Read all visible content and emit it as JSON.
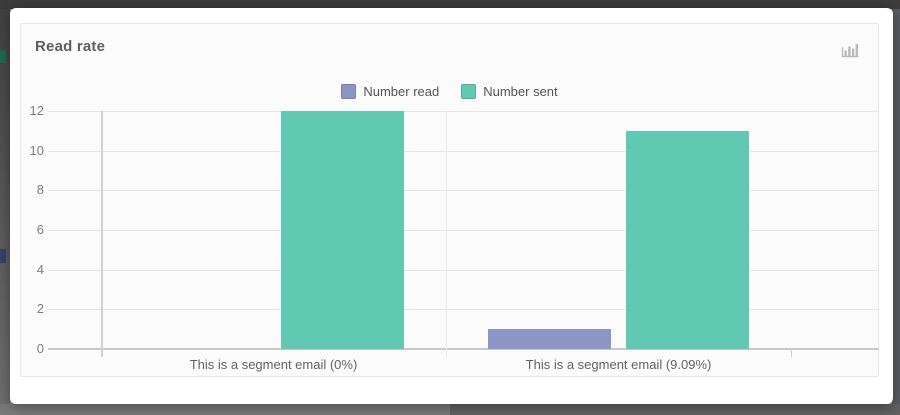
{
  "window": {
    "kind": "modal-dialog"
  },
  "card": {
    "title": "Read rate",
    "header_icon": "bar-chart-icon"
  },
  "chart_data": {
    "type": "bar",
    "title": "Read rate",
    "categories": [
      "This is a segment email (0%)",
      "This is a segment email (9.09%)"
    ],
    "series": [
      {
        "name": "Number read",
        "color": "#8b96c6",
        "values": [
          0,
          1
        ]
      },
      {
        "name": "Number sent",
        "color": "#61c8b2",
        "values": [
          12,
          11
        ]
      }
    ],
    "ylim": [
      0,
      12
    ],
    "ytick_step": 2,
    "xlabel": "",
    "ylabel": "",
    "grid": true,
    "legend_position": "top-center"
  },
  "colors": {
    "read": "#8b96c6",
    "sent": "#61c8b2",
    "panel_bg": "#fbfbfb",
    "panel_border": "#e8e8e8",
    "grid_line": "#e6e6e6",
    "axis_line": "#d2d2d2",
    "zero_line": "#c8c8c8",
    "title_text": "#5e5e5e",
    "tick_text": "#7d7d7d"
  }
}
